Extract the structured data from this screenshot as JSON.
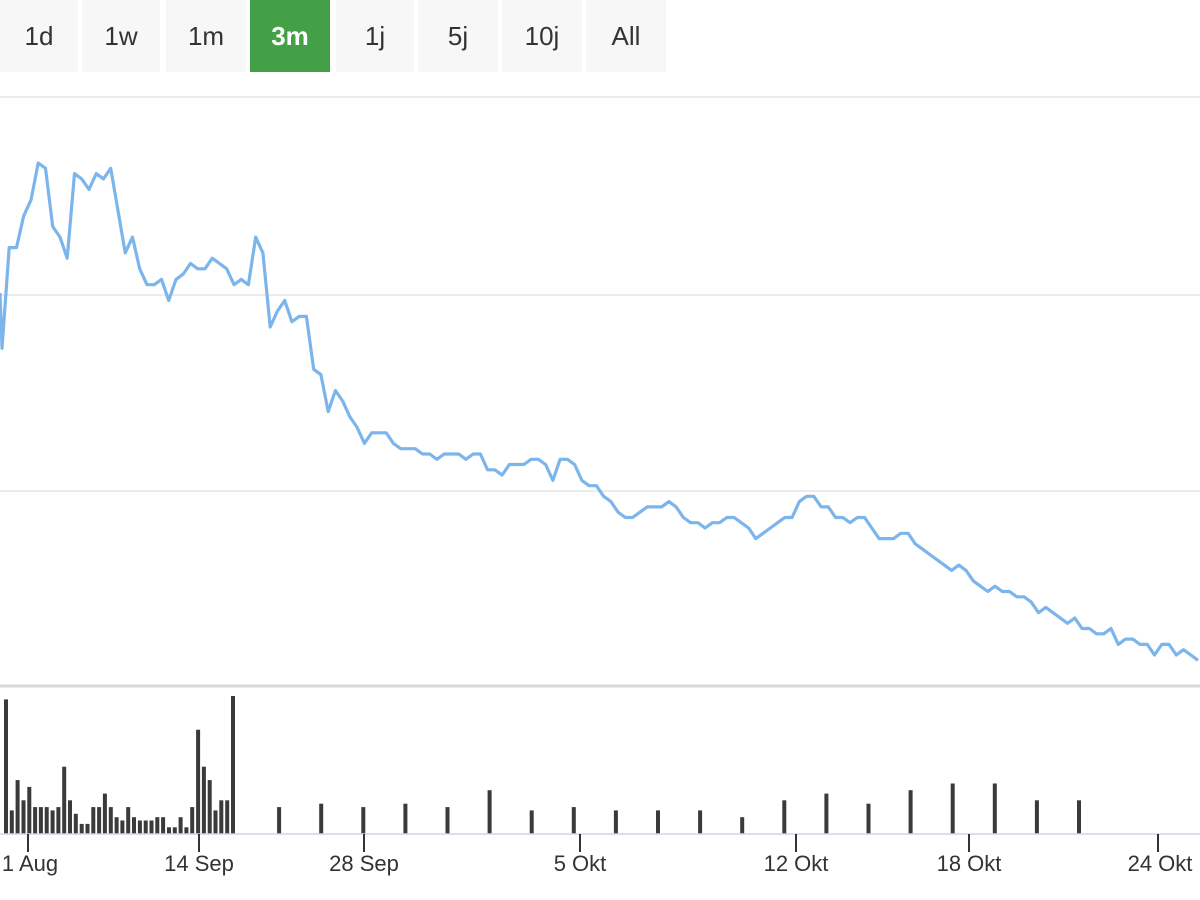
{
  "range_selector": {
    "buttons": [
      "1d",
      "1w",
      "1m",
      "3m",
      "1j",
      "5j",
      "10j",
      "All"
    ],
    "active": "3m"
  },
  "colors": {
    "line": "#7cb5ec",
    "volume": "#3a3a3a",
    "active_button": "#43a047",
    "button_bg": "#f7f7f7",
    "grid": "#e6e6e6"
  },
  "chart_data": {
    "type": "line",
    "title": "",
    "xlabel": "",
    "ylabel": "",
    "x_ticks": [
      "1 Aug",
      "14 Sep",
      "28 Sep",
      "5 Okt",
      "12 Okt",
      "18 Okt",
      "24 Okt"
    ],
    "grid": true,
    "y_axis_labels_visible": false,
    "series": [
      {
        "type": "line",
        "points": [
          [
            0,
            105
          ],
          [
            1,
            86
          ],
          [
            2,
            86
          ],
          [
            3,
            80
          ],
          [
            4,
            77
          ],
          [
            5,
            70
          ],
          [
            6,
            71
          ],
          [
            7,
            82
          ],
          [
            8,
            84
          ],
          [
            9,
            88
          ],
          [
            10,
            72
          ],
          [
            11,
            73
          ],
          [
            12,
            75
          ],
          [
            13,
            72
          ],
          [
            14,
            73
          ],
          [
            15,
            71
          ],
          [
            16,
            79
          ],
          [
            17,
            87
          ],
          [
            18,
            84
          ],
          [
            19,
            90
          ],
          [
            20,
            93
          ],
          [
            21,
            93
          ],
          [
            22,
            92
          ],
          [
            23,
            96
          ],
          [
            24,
            92
          ],
          [
            25,
            91
          ],
          [
            26,
            89
          ],
          [
            27,
            90
          ],
          [
            28,
            90
          ],
          [
            29,
            88
          ],
          [
            30,
            89
          ],
          [
            31,
            90
          ],
          [
            32,
            93
          ],
          [
            33,
            92
          ],
          [
            34,
            93
          ],
          [
            35,
            84
          ],
          [
            36,
            87
          ],
          [
            37,
            101
          ],
          [
            38,
            98
          ],
          [
            39,
            96
          ],
          [
            40,
            100
          ],
          [
            41,
            99
          ],
          [
            42,
            99
          ],
          [
            43,
            109
          ],
          [
            44,
            110
          ],
          [
            45,
            117
          ],
          [
            46,
            113
          ],
          [
            47,
            115
          ],
          [
            48,
            118
          ],
          [
            49,
            120
          ],
          [
            50,
            123
          ],
          [
            51,
            121
          ],
          [
            52,
            121
          ],
          [
            53,
            121
          ],
          [
            54,
            123
          ],
          [
            55,
            124
          ],
          [
            56,
            124
          ],
          [
            57,
            124
          ],
          [
            58,
            125
          ],
          [
            59,
            125
          ],
          [
            60,
            126
          ],
          [
            61,
            125
          ],
          [
            62,
            125
          ],
          [
            63,
            125
          ],
          [
            64,
            126
          ],
          [
            65,
            125
          ],
          [
            66,
            125
          ],
          [
            67,
            128
          ],
          [
            68,
            128
          ],
          [
            69,
            129
          ],
          [
            70,
            127
          ],
          [
            71,
            127
          ],
          [
            72,
            127
          ],
          [
            73,
            126
          ],
          [
            74,
            126
          ],
          [
            75,
            127
          ],
          [
            76,
            130
          ],
          [
            77,
            126
          ],
          [
            78,
            126
          ],
          [
            79,
            127
          ],
          [
            80,
            130
          ],
          [
            81,
            131
          ],
          [
            82,
            131
          ],
          [
            83,
            133
          ],
          [
            84,
            134
          ],
          [
            85,
            136
          ],
          [
            86,
            137
          ],
          [
            87,
            137
          ],
          [
            88,
            136
          ],
          [
            89,
            135
          ],
          [
            90,
            135
          ],
          [
            91,
            135
          ],
          [
            92,
            134
          ],
          [
            93,
            135
          ],
          [
            94,
            137
          ],
          [
            95,
            138
          ],
          [
            96,
            138
          ],
          [
            97,
            139
          ],
          [
            98,
            138
          ],
          [
            99,
            138
          ],
          [
            100,
            137
          ],
          [
            101,
            137
          ],
          [
            102,
            138
          ],
          [
            103,
            139
          ],
          [
            104,
            141
          ],
          [
            105,
            140
          ],
          [
            106,
            139
          ],
          [
            107,
            138
          ],
          [
            108,
            137
          ],
          [
            109,
            137
          ],
          [
            110,
            134
          ],
          [
            111,
            133
          ],
          [
            112,
            133
          ],
          [
            113,
            135
          ],
          [
            114,
            135
          ],
          [
            115,
            137
          ],
          [
            116,
            137
          ],
          [
            117,
            138
          ],
          [
            118,
            137
          ],
          [
            119,
            137
          ],
          [
            120,
            139
          ],
          [
            121,
            141
          ],
          [
            122,
            141
          ],
          [
            123,
            141
          ],
          [
            124,
            140
          ],
          [
            125,
            140
          ],
          [
            126,
            142
          ],
          [
            127,
            143
          ],
          [
            128,
            144
          ],
          [
            129,
            145
          ],
          [
            130,
            146
          ],
          [
            131,
            147
          ],
          [
            132,
            146
          ],
          [
            133,
            147
          ],
          [
            134,
            149
          ],
          [
            135,
            150
          ],
          [
            136,
            151
          ],
          [
            137,
            150
          ],
          [
            138,
            151
          ],
          [
            139,
            151
          ],
          [
            140,
            152
          ],
          [
            141,
            152
          ],
          [
            142,
            153
          ],
          [
            143,
            155
          ],
          [
            144,
            154
          ],
          [
            145,
            155
          ],
          [
            146,
            156
          ],
          [
            147,
            157
          ],
          [
            148,
            156
          ],
          [
            149,
            158
          ],
          [
            150,
            158
          ],
          [
            151,
            159
          ],
          [
            152,
            159
          ],
          [
            153,
            158
          ],
          [
            154,
            161
          ],
          [
            155,
            160
          ],
          [
            156,
            160
          ],
          [
            157,
            161
          ],
          [
            158,
            161
          ],
          [
            159,
            163
          ],
          [
            160,
            161
          ],
          [
            161,
            161
          ],
          [
            162,
            163
          ],
          [
            163,
            162
          ],
          [
            164,
            163
          ],
          [
            165,
            164
          ]
        ]
      },
      {
        "type": "column",
        "name": "",
        "points": [
          [
            0,
            40
          ],
          [
            1,
            7
          ],
          [
            2,
            16
          ],
          [
            3,
            10
          ],
          [
            4,
            14
          ],
          [
            5,
            8
          ],
          [
            6,
            8
          ],
          [
            7,
            8
          ],
          [
            8,
            7
          ],
          [
            9,
            8
          ],
          [
            10,
            20
          ],
          [
            11,
            10
          ],
          [
            12,
            6
          ],
          [
            13,
            3
          ],
          [
            14,
            3
          ],
          [
            15,
            8
          ],
          [
            16,
            8
          ],
          [
            17,
            12
          ],
          [
            18,
            8
          ],
          [
            19,
            5
          ],
          [
            20,
            4
          ],
          [
            21,
            8
          ],
          [
            22,
            5
          ],
          [
            23,
            4
          ],
          [
            24,
            4
          ],
          [
            25,
            4
          ],
          [
            26,
            5
          ],
          [
            27,
            5
          ],
          [
            28,
            2
          ],
          [
            29,
            2
          ],
          [
            30,
            5
          ],
          [
            31,
            2
          ],
          [
            32,
            8
          ],
          [
            33,
            31
          ],
          [
            34,
            20
          ],
          [
            35,
            16
          ],
          [
            36,
            7
          ],
          [
            37,
            10
          ],
          [
            38,
            10
          ],
          [
            39,
            41
          ],
          [
            41,
            8
          ],
          [
            43,
            9
          ],
          [
            45,
            8
          ],
          [
            47,
            9
          ],
          [
            49,
            8
          ],
          [
            51,
            13
          ],
          [
            53,
            7
          ],
          [
            55,
            8
          ],
          [
            57,
            7
          ],
          [
            59,
            7
          ],
          [
            61,
            7
          ],
          [
            63,
            5
          ],
          [
            65,
            10
          ],
          [
            67,
            12
          ],
          [
            69,
            9
          ],
          [
            71,
            13
          ],
          [
            73,
            15
          ],
          [
            75,
            15
          ],
          [
            77,
            10
          ],
          [
            79,
            10
          ]
        ]
      }
    ],
    "volume": {
      "type": "column",
      "x_positions": [
        0,
        1,
        2,
        3,
        4,
        5,
        6,
        7,
        8,
        9,
        10,
        11,
        12,
        13,
        14,
        15,
        16,
        17,
        18,
        19,
        20,
        21,
        22,
        23,
        24,
        25,
        26,
        27,
        28,
        29,
        30,
        31,
        32,
        33,
        34,
        35,
        36,
        37,
        38,
        39,
        41,
        43,
        45,
        47,
        49,
        51,
        53,
        55,
        57,
        59,
        61,
        63,
        65,
        67,
        69,
        71,
        73,
        75,
        77,
        79
      ],
      "values": [
        40,
        7,
        16,
        10,
        14,
        8,
        8,
        8,
        7,
        8,
        20,
        10,
        6,
        3,
        3,
        8,
        8,
        12,
        8,
        5,
        4,
        8,
        5,
        4,
        4,
        4,
        5,
        5,
        2,
        2,
        5,
        2,
        8,
        31,
        20,
        16,
        7,
        10,
        10,
        41,
        8,
        9,
        8,
        9,
        8,
        13,
        7,
        8,
        7,
        7,
        7,
        5,
        10,
        12,
        9,
        13,
        15,
        15,
        10,
        10
      ]
    }
  }
}
